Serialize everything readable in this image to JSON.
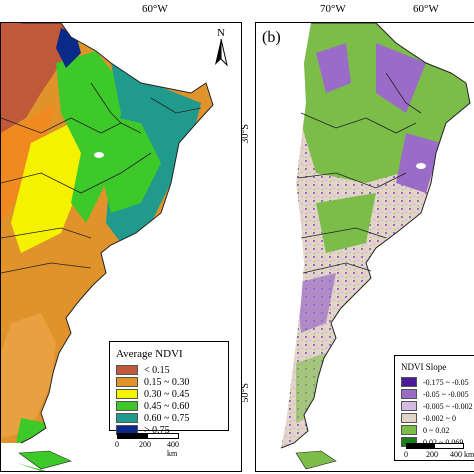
{
  "top_ticks": {
    "a_60w": "60°W",
    "b_70w": "70°W",
    "b_60w": "60°W"
  },
  "side_ticks": {
    "lat_30s": "30°S",
    "lat_50s": "50°S"
  },
  "panel_a": {
    "north_label": "N",
    "legend_title": "Average NDVI",
    "legend": [
      {
        "label": "< 0.15",
        "color": "#c0583a"
      },
      {
        "label": "0.15 ~ 0.30",
        "color": "#e0932a"
      },
      {
        "label": "0.30 ~ 0.45",
        "color": "#f5f200"
      },
      {
        "label": "0.45 ~ 0.60",
        "color": "#3ec92a"
      },
      {
        "label": "0.60 ~ 0.75",
        "color": "#1f9a8c"
      },
      {
        "label": "> 0.75",
        "color": "#0a2a8a"
      }
    ],
    "scale": {
      "s0": "0",
      "s200": "200",
      "s400": "400 km"
    }
  },
  "panel_b": {
    "panel_label": "(b)",
    "legend_title": "NDVI Slope",
    "legend": [
      {
        "label": "-0.175 ~ -0.05",
        "color": "#4b1a9a"
      },
      {
        "label": "-0.05 ~ -0.005",
        "color": "#9a6cc8"
      },
      {
        "label": "-0.005 ~ -0.002",
        "color": "#d3bcdf"
      },
      {
        "label": "-0.002 ~ 0",
        "color": "#e3d4c8"
      },
      {
        "label": "0 ~ 0.02",
        "color": "#7cbd4a"
      },
      {
        "label": "0.02 ~ 0.069",
        "color": "#1a7f1a"
      }
    ],
    "scale": {
      "s0": "0",
      "s200": "200",
      "s400": "400 km"
    }
  }
}
